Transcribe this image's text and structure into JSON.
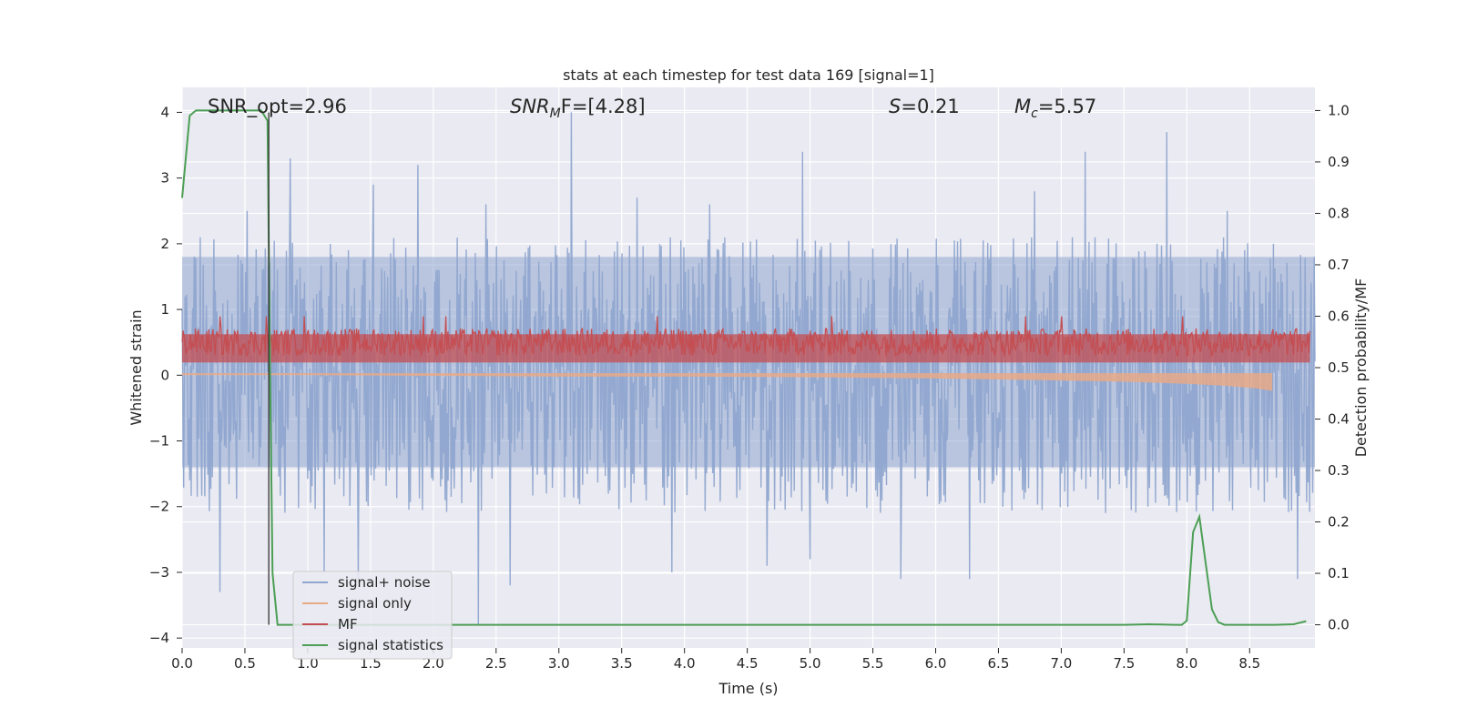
{
  "chart_data": {
    "type": "line",
    "title": "stats at each timestep for test data 169 [signal=1]",
    "xlabel": "Time (s)",
    "ylabel": "Whitened strain",
    "y2label": "Detection probability/MF",
    "xlim": [
      0.0,
      9.02
    ],
    "ylim": [
      -4.15,
      4.38
    ],
    "y2lim": [
      -0.045,
      1.045
    ],
    "grid": true,
    "legend_position": "lower-left",
    "xticks": [
      "0.0",
      "0.5",
      "1.0",
      "1.5",
      "2.0",
      "2.5",
      "3.0",
      "3.5",
      "4.0",
      "4.5",
      "5.0",
      "5.5",
      "6.0",
      "6.5",
      "7.0",
      "7.5",
      "8.0",
      "8.5"
    ],
    "yticks": [
      "−4",
      "−3",
      "−2",
      "−1",
      "0",
      "1",
      "2",
      "3",
      "4"
    ],
    "y2ticks": [
      "0.0",
      "0.1",
      "0.2",
      "0.3",
      "0.4",
      "0.5",
      "0.6",
      "0.7",
      "0.8",
      "0.9",
      "1.0"
    ],
    "annotations": {
      "snr_opt": "SNR_opt=2.96",
      "snr_mf_main": "SNR",
      "snr_mf_sub": "M",
      "snr_mf_rest": "F=[4.28]",
      "s_main": "S",
      "s_rest": "=0.21",
      "mc_main": "M",
      "mc_sub": "c",
      "mc_rest": "=5.57"
    },
    "marker_line_x": 0.69,
    "series": [
      {
        "name": "signal+ noise",
        "color": "#8fa6cf",
        "envelope": {
          "x": [
            0.0,
            9.02
          ],
          "typical_range": [
            -1.6,
            2.0
          ],
          "peaks": [
            [
              0.3,
              -3.3
            ],
            [
              0.52,
              2.5
            ],
            [
              0.86,
              3.3
            ],
            [
              1.13,
              -3.0
            ],
            [
              1.4,
              -3.1
            ],
            [
              1.52,
              2.9
            ],
            [
              1.88,
              3.2
            ],
            [
              2.36,
              -3.8
            ],
            [
              2.42,
              2.6
            ],
            [
              2.61,
              -3.2
            ],
            [
              3.1,
              4.0
            ],
            [
              3.62,
              2.7
            ],
            [
              3.9,
              -3.0
            ],
            [
              4.2,
              2.6
            ],
            [
              4.66,
              -2.9
            ],
            [
              4.94,
              3.4
            ],
            [
              5.0,
              -2.8
            ],
            [
              5.72,
              -3.1
            ],
            [
              6.27,
              -3.1
            ],
            [
              6.79,
              2.8
            ],
            [
              7.19,
              3.4
            ],
            [
              7.84,
              3.7
            ],
            [
              8.32,
              2.5
            ],
            [
              8.88,
              -3.1
            ]
          ]
        }
      },
      {
        "name": "signal only",
        "color": "#e8a987",
        "x": [
          0.0,
          1.0,
          2.0,
          3.0,
          4.0,
          5.0,
          6.0,
          7.0,
          7.5,
          8.0,
          8.3,
          8.55,
          8.68
        ],
        "y": [
          0.0,
          0.0,
          -0.01,
          -0.02,
          -0.02,
          -0.03,
          -0.05,
          -0.08,
          -0.1,
          -0.13,
          -0.16,
          -0.2,
          -0.24
        ]
      },
      {
        "name": "MF",
        "color": "#c44e52",
        "band_y2": [
          0.5,
          0.59
        ],
        "peaks_y2": [
          [
            0.3,
            0.6
          ],
          [
            0.67,
            0.6
          ],
          [
            0.97,
            0.6
          ],
          [
            1.92,
            0.6
          ],
          [
            2.1,
            0.6
          ],
          [
            3.78,
            0.6
          ],
          [
            5.17,
            0.6
          ],
          [
            6.72,
            0.6
          ],
          [
            7.0,
            0.6
          ],
          [
            7.97,
            0.6
          ]
        ]
      },
      {
        "name": "signal statistics",
        "color": "#4c9f55",
        "x": [
          0.0,
          0.06,
          0.11,
          0.2,
          0.4,
          0.6,
          0.63,
          0.68,
          0.7,
          0.72,
          0.76,
          0.8,
          1.0,
          2.0,
          3.0,
          4.0,
          5.0,
          6.0,
          7.0,
          7.5,
          7.7,
          7.9,
          7.96,
          8.0,
          8.05,
          8.1,
          8.15,
          8.2,
          8.25,
          8.3,
          8.5,
          8.7,
          8.85,
          8.95
        ],
        "y": [
          0.83,
          0.99,
          1.0,
          1.0,
          1.0,
          1.0,
          1.0,
          0.98,
          0.5,
          0.1,
          0.0,
          0.0,
          0.0,
          0.0,
          0.0,
          0.0,
          0.0,
          0.0,
          0.0,
          0.0,
          0.001,
          0.0,
          0.0,
          0.008,
          0.18,
          0.21,
          0.12,
          0.03,
          0.005,
          0.0,
          0.0,
          0.0,
          0.001,
          0.007
        ]
      }
    ]
  }
}
